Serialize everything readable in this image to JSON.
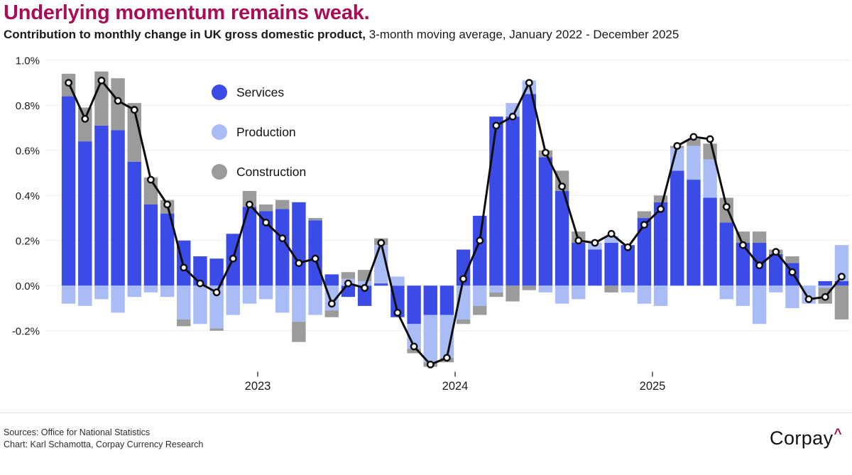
{
  "header": {
    "title": "Underlying momentum remains weak.",
    "subtitle_strong": "Contribution to monthly change in UK gross domestic product,",
    "subtitle_rest": " 3-month moving average, January 2022 - December 2025"
  },
  "colors": {
    "accent": "#A80D56",
    "services": "#3B4CE6",
    "production": "#A9BCF5",
    "construction": "#9B9B9B",
    "line": "#0D0D0D",
    "grid": "#ECECEC"
  },
  "legend": {
    "items": [
      {
        "label": "Services",
        "color": "#3B4CE6"
      },
      {
        "label": "Production",
        "color": "#A9BCF5"
      },
      {
        "label": "Construction",
        "color": "#9B9B9B"
      }
    ]
  },
  "chart_data": {
    "type": "bar",
    "subtype": "stacked-bars-with-line-overlay",
    "title": "Contribution to monthly change in UK gross domestic product, 3-month moving average, January 2022 - December 2025",
    "unit": "percentage points",
    "grid": true,
    "legend_position": "top-left-inside",
    "ylim": [
      -0.38,
      1.02
    ],
    "y_tick_labels": [
      "1.0%",
      "0.8%",
      "0.6%",
      "0.4%",
      "0.2%",
      "0.0%",
      "-0.2%"
    ],
    "y_tick_values": [
      1.0,
      0.8,
      0.6,
      0.4,
      0.2,
      0.0,
      -0.2
    ],
    "x_tick_labels": [
      "2023",
      "2024",
      "2025"
    ],
    "categories": [
      "Jan 2022",
      "Feb 2022",
      "Mar 2022",
      "Apr 2022",
      "May 2022",
      "Jun 2022",
      "Jul 2022",
      "Aug 2022",
      "Sep 2022",
      "Oct 2022",
      "Nov 2022",
      "Dec 2022",
      "Jan 2023",
      "Feb 2023",
      "Mar 2023",
      "Apr 2023",
      "May 2023",
      "Jun 2023",
      "Jul 2023",
      "Aug 2023",
      "Sep 2023",
      "Oct 2023",
      "Nov 2023",
      "Dec 2023",
      "Jan 2024",
      "Feb 2024",
      "Mar 2024",
      "Apr 2024",
      "May 2024",
      "Jun 2024",
      "Jul 2024",
      "Aug 2024",
      "Sep 2024",
      "Oct 2024",
      "Nov 2024",
      "Dec 2024",
      "Jan 2025",
      "Feb 2025",
      "Mar 2025",
      "Apr 2025",
      "May 2025",
      "Jun 2025",
      "Jul 2025",
      "Aug 2025",
      "Sep 2025",
      "Oct 2025",
      "Nov 2025",
      "Dec 2025"
    ],
    "series": [
      {
        "name": "Services",
        "color": "#3B4CE6",
        "values": [
          0.84,
          0.64,
          0.71,
          0.69,
          0.55,
          0.36,
          0.32,
          0.2,
          0.13,
          0.12,
          0.23,
          0.35,
          0.33,
          0.34,
          0.37,
          0.29,
          0.05,
          -0.05,
          -0.09,
          0.01,
          -0.14,
          -0.17,
          -0.13,
          -0.13,
          0.16,
          0.31,
          0.75,
          0.75,
          0.85,
          0.57,
          0.42,
          0.19,
          0.16,
          0.19,
          0.18,
          0.3,
          0.37,
          0.51,
          0.47,
          0.39,
          0.28,
          0.19,
          0.19,
          0.14,
          0.1,
          0.0,
          0.02,
          0.02
        ]
      },
      {
        "name": "Production",
        "color": "#A9BCF5",
        "values": [
          -0.08,
          -0.09,
          -0.06,
          -0.12,
          -0.05,
          -0.03,
          -0.05,
          -0.15,
          -0.17,
          -0.19,
          -0.13,
          -0.08,
          -0.06,
          -0.12,
          -0.16,
          -0.13,
          -0.11,
          0.03,
          0.02,
          0.17,
          0.04,
          -0.11,
          -0.21,
          -0.19,
          -0.15,
          -0.09,
          -0.03,
          0.06,
          0.06,
          -0.03,
          -0.08,
          -0.06,
          0.03,
          0.03,
          -0.03,
          -0.08,
          -0.09,
          0.1,
          0.15,
          0.17,
          -0.06,
          -0.09,
          -0.17,
          -0.03,
          -0.1,
          -0.08,
          -0.01,
          0.16
        ]
      },
      {
        "name": "Construction",
        "color": "#9B9B9B",
        "values": [
          0.1,
          0.15,
          0.24,
          0.23,
          0.26,
          0.12,
          0.06,
          -0.03,
          0.0,
          -0.01,
          0.0,
          0.07,
          0.03,
          0.04,
          -0.09,
          0.01,
          -0.03,
          0.03,
          0.05,
          0.03,
          0.0,
          -0.02,
          -0.02,
          -0.02,
          -0.02,
          -0.04,
          -0.02,
          -0.07,
          -0.02,
          0.03,
          0.09,
          0.05,
          0.0,
          -0.03,
          0.0,
          0.03,
          0.03,
          0.01,
          0.03,
          0.07,
          0.11,
          0.05,
          0.05,
          0.02,
          0.03,
          0.0,
          -0.07,
          -0.15
        ]
      }
    ],
    "line_series": {
      "color": "#0D0D0D",
      "marker": "circle-white-fill",
      "values": [
        0.9,
        0.74,
        0.91,
        0.82,
        0.78,
        0.47,
        0.36,
        0.08,
        0.01,
        -0.03,
        0.12,
        0.36,
        0.28,
        0.21,
        0.1,
        0.12,
        -0.08,
        0.01,
        -0.01,
        0.19,
        -0.12,
        -0.27,
        -0.35,
        -0.32,
        0.03,
        0.2,
        0.71,
        0.75,
        0.9,
        0.59,
        0.44,
        0.2,
        0.19,
        0.23,
        0.17,
        0.27,
        0.34,
        0.62,
        0.66,
        0.65,
        0.35,
        0.18,
        0.09,
        0.15,
        0.06,
        -0.06,
        -0.05,
        0.04
      ]
    }
  },
  "footer": {
    "sources": "Sources: Office for National Statistics",
    "credit": "Chart: Karl Schamotta, Corpay Currency Research",
    "logo_text": "Corpay",
    "logo_caret": "^"
  }
}
